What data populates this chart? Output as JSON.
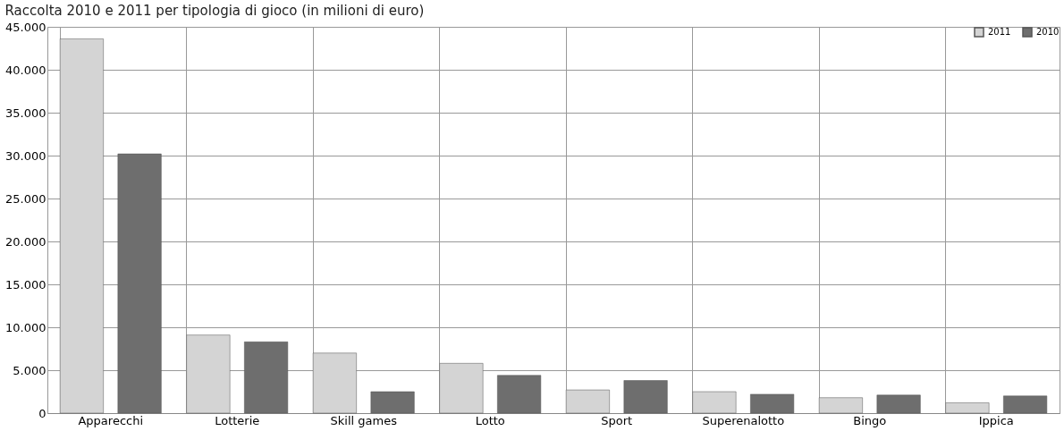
{
  "chart_data": {
    "type": "bar",
    "title": "Raccolta 2010 e 2011 per tipologia di gioco (in milioni di euro)",
    "categories": [
      "Apparecchi",
      "Lotterie",
      "Skill games",
      "Lotto",
      "Sport",
      "Superenalotto",
      "Bingo",
      "Ippica"
    ],
    "series": [
      {
        "name": "2011",
        "color": "#d4d4d4",
        "values": [
          43600,
          9100,
          7000,
          5800,
          2700,
          2500,
          1800,
          1200
        ]
      },
      {
        "name": "2010",
        "color": "#6e6e6e",
        "values": [
          30200,
          8300,
          2500,
          4400,
          3800,
          2200,
          2100,
          2000
        ]
      }
    ],
    "ylim": [
      0,
      45000
    ],
    "yticks": [
      {
        "value": 0,
        "label": "0"
      },
      {
        "value": 5000,
        "label": "5.000"
      },
      {
        "value": 10000,
        "label": "10.000"
      },
      {
        "value": 15000,
        "label": "15.000"
      },
      {
        "value": 20000,
        "label": "20.000"
      },
      {
        "value": 25000,
        "label": "25.000"
      },
      {
        "value": 30000,
        "label": "30.000"
      },
      {
        "value": 35000,
        "label": "35.000"
      },
      {
        "value": 40000,
        "label": "40.000"
      },
      {
        "value": 45000,
        "label": "45.000"
      }
    ],
    "grid": true,
    "legend": "top right"
  }
}
